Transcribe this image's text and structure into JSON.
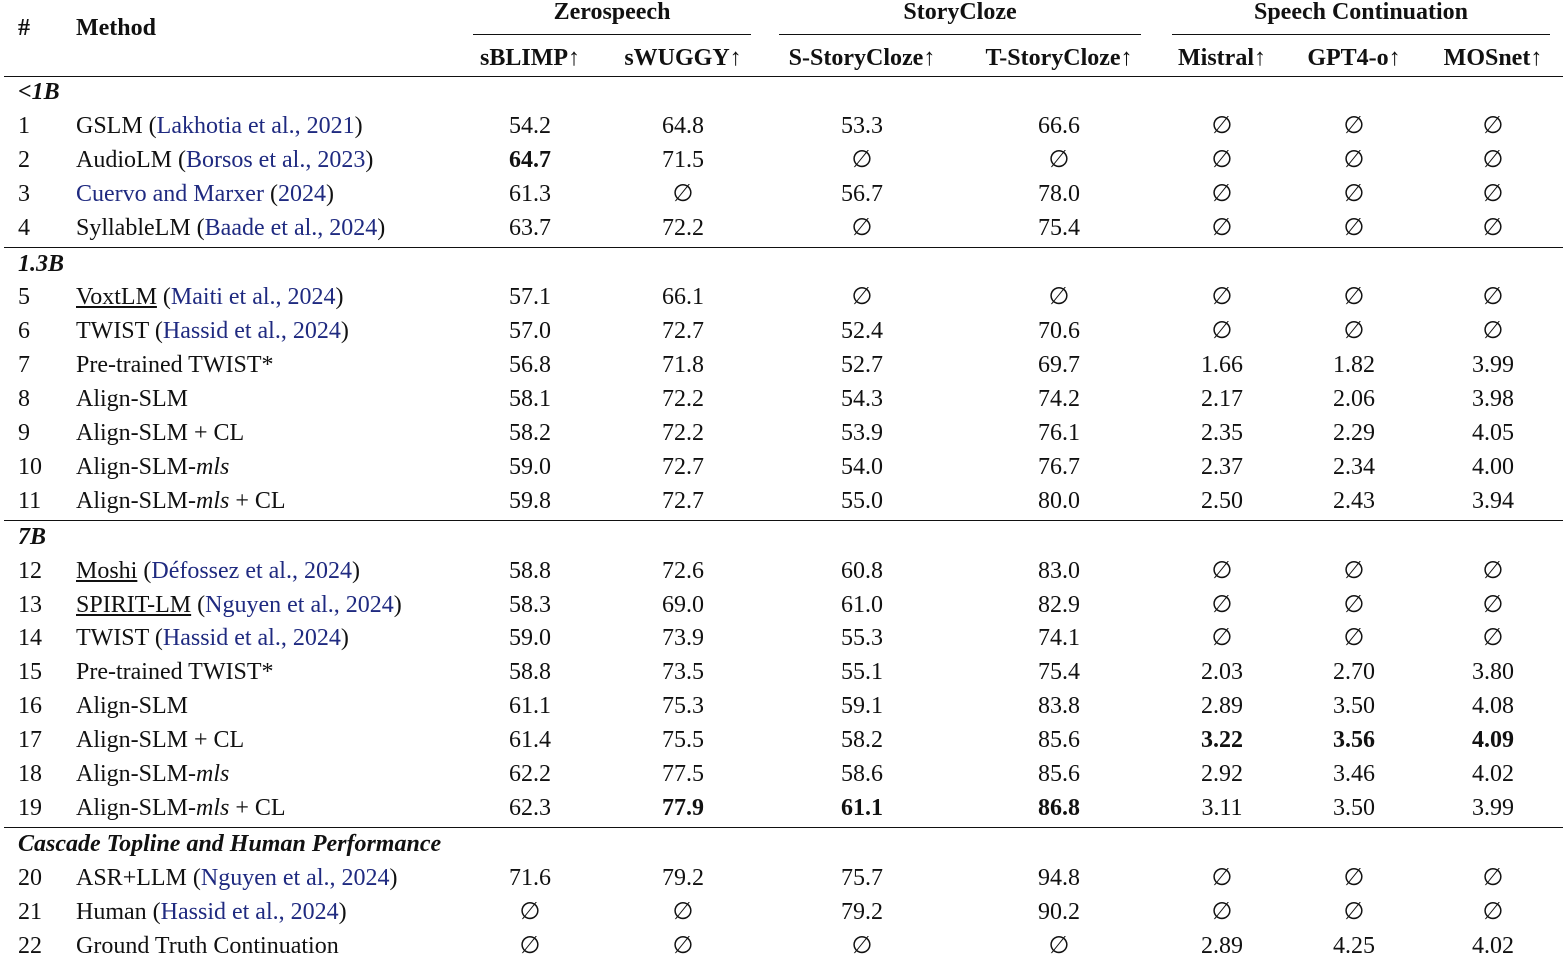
{
  "header": {
    "number": "#",
    "method": "Method",
    "groups": [
      {
        "title": "Zerospeech",
        "columns": [
          "sBLIMP↑",
          "sWUGGY↑"
        ]
      },
      {
        "title": "StoryCloze",
        "columns": [
          "S-StoryCloze↑",
          "T-StoryCloze↑"
        ]
      },
      {
        "title": "Speech Continuation",
        "columns": [
          "Mistral↑",
          "GPT4-o↑",
          "MOSnet↑"
        ]
      }
    ]
  },
  "sections": [
    {
      "title": "<1B",
      "rows": [
        {
          "number": "1",
          "method": [
            "GSLM (",
            {
              "text": "Lakhotia et al., 2021",
              "color": "#1f2a80"
            },
            ")"
          ],
          "scores": [
            "54.2",
            "64.8",
            "53.3",
            "66.6",
            "∅",
            "∅",
            "∅"
          ]
        },
        {
          "number": "2",
          "method": [
            "AudioLM (",
            {
              "text": "Borsos et al., 2023",
              "color": "#1f2a80"
            },
            ")"
          ],
          "scores": [
            {
              "text": "64.7",
              "bold": true
            },
            "71.5",
            "∅",
            "∅",
            "∅",
            "∅",
            "∅"
          ]
        },
        {
          "number": "3",
          "method": [
            {
              "text": "Cuervo and Marxer",
              "color": "#1f2a80"
            },
            " (",
            {
              "text": "2024",
              "color": "#1f2a80"
            },
            ")"
          ],
          "scores": [
            "61.3",
            "∅",
            "56.7",
            "78.0",
            "∅",
            "∅",
            "∅"
          ]
        },
        {
          "number": "4",
          "method": [
            "SyllableLM (",
            {
              "text": "Baade et al., 2024",
              "color": "#1f2a80"
            },
            ")"
          ],
          "scores": [
            "63.7",
            "72.2",
            "∅",
            "75.4",
            "∅",
            "∅",
            "∅"
          ]
        }
      ]
    },
    {
      "title": "1.3B",
      "rows": [
        {
          "number": "5",
          "method": [
            {
              "text": "VoxtLM",
              "underline": true
            },
            " (",
            {
              "text": "Maiti et al., 2024",
              "color": "#1f2a80"
            },
            ")"
          ],
          "scores": [
            "57.1",
            "66.1",
            "∅",
            "∅",
            "∅",
            "∅",
            "∅"
          ]
        },
        {
          "number": "6",
          "method": [
            "TWIST (",
            {
              "text": "Hassid et al., 2024",
              "color": "#1f2a80"
            },
            ")"
          ],
          "scores": [
            "57.0",
            "72.7",
            "52.4",
            "70.6",
            "∅",
            "∅",
            "∅"
          ]
        },
        {
          "number": "7",
          "method": [
            "Pre-trained TWIST*"
          ],
          "scores": [
            "56.8",
            "71.8",
            "52.7",
            "69.7",
            "1.66",
            "1.82",
            "3.99"
          ]
        },
        {
          "number": "8",
          "method": [
            "Align-SLM"
          ],
          "scores": [
            "58.1",
            "72.2",
            "54.3",
            "74.2",
            "2.17",
            "2.06",
            "3.98"
          ]
        },
        {
          "number": "9",
          "method": [
            "Align-SLM + CL"
          ],
          "scores": [
            "58.2",
            "72.2",
            "53.9",
            "76.1",
            "2.35",
            "2.29",
            "4.05"
          ]
        },
        {
          "number": "10",
          "method": [
            "Align-SLM-",
            {
              "text": "mls",
              "italic": true
            }
          ],
          "scores": [
            "59.0",
            "72.7",
            "54.0",
            "76.7",
            "2.37",
            "2.34",
            "4.00"
          ]
        },
        {
          "number": "11",
          "method": [
            "Align-SLM-",
            {
              "text": "mls",
              "italic": true
            },
            " + CL"
          ],
          "scores": [
            "59.8",
            "72.7",
            "55.0",
            "80.0",
            "2.50",
            "2.43",
            "3.94"
          ]
        }
      ]
    },
    {
      "title": "7B",
      "rows": [
        {
          "number": "12",
          "method": [
            {
              "text": "Moshi",
              "underline": true
            },
            " (",
            {
              "text": "Défossez et al., 2024",
              "color": "#1f2a80"
            },
            ")"
          ],
          "scores": [
            "58.8",
            "72.6",
            "60.8",
            "83.0",
            "∅",
            "∅",
            "∅"
          ]
        },
        {
          "number": "13",
          "method": [
            {
              "text": "SPIRIT-LM",
              "underline": true
            },
            " (",
            {
              "text": "Nguyen et al., 2024",
              "color": "#1f2a80"
            },
            ")"
          ],
          "scores": [
            "58.3",
            "69.0",
            "61.0",
            "82.9",
            "∅",
            "∅",
            "∅"
          ]
        },
        {
          "number": "14",
          "method": [
            "TWIST (",
            {
              "text": "Hassid et al., 2024",
              "color": "#1f2a80"
            },
            ")"
          ],
          "scores": [
            "59.0",
            "73.9",
            "55.3",
            "74.1",
            "∅",
            "∅",
            "∅"
          ]
        },
        {
          "number": "15",
          "method": [
            "Pre-trained TWIST*"
          ],
          "scores": [
            "58.8",
            "73.5",
            "55.1",
            "75.4",
            "2.03",
            "2.70",
            "3.80"
          ]
        },
        {
          "number": "16",
          "method": [
            "Align-SLM"
          ],
          "scores": [
            "61.1",
            "75.3",
            "59.1",
            "83.8",
            "2.89",
            "3.50",
            "4.08"
          ]
        },
        {
          "number": "17",
          "method": [
            "Align-SLM + CL"
          ],
          "scores": [
            "61.4",
            "75.5",
            "58.2",
            "85.6",
            {
              "text": "3.22",
              "bold": true
            },
            {
              "text": "3.56",
              "bold": true
            },
            {
              "text": "4.09",
              "bold": true
            }
          ]
        },
        {
          "number": "18",
          "method": [
            "Align-SLM-",
            {
              "text": "mls",
              "italic": true
            }
          ],
          "scores": [
            "62.2",
            "77.5",
            "58.6",
            "85.6",
            "2.92",
            "3.46",
            "4.02"
          ]
        },
        {
          "number": "19",
          "method": [
            "Align-SLM-",
            {
              "text": "mls",
              "italic": true
            },
            " + CL"
          ],
          "scores": [
            "62.3",
            {
              "text": "77.9",
              "bold": true
            },
            {
              "text": "61.1",
              "bold": true
            },
            {
              "text": "86.8",
              "bold": true
            },
            "3.11",
            "3.50",
            "3.99"
          ]
        }
      ]
    },
    {
      "title": "Cascade Topline and Human Performance",
      "rows": [
        {
          "number": "20",
          "method": [
            "ASR+LLM (",
            {
              "text": "Nguyen et al., 2024",
              "color": "#1f2a80"
            },
            ")"
          ],
          "scores": [
            "71.6",
            "79.2",
            "75.7",
            "94.8",
            "∅",
            "∅",
            "∅"
          ]
        },
        {
          "number": "21",
          "method": [
            "Human (",
            {
              "text": "Hassid et al., 2024",
              "color": "#1f2a80"
            },
            ")"
          ],
          "scores": [
            "∅",
            "∅",
            "79.2",
            "90.2",
            "∅",
            "∅",
            "∅"
          ]
        },
        {
          "number": "22",
          "method": [
            "Ground Truth Continuation"
          ],
          "scores": [
            "∅",
            "∅",
            "∅",
            "∅",
            "2.89",
            "4.25",
            "4.02"
          ]
        }
      ]
    }
  ]
}
